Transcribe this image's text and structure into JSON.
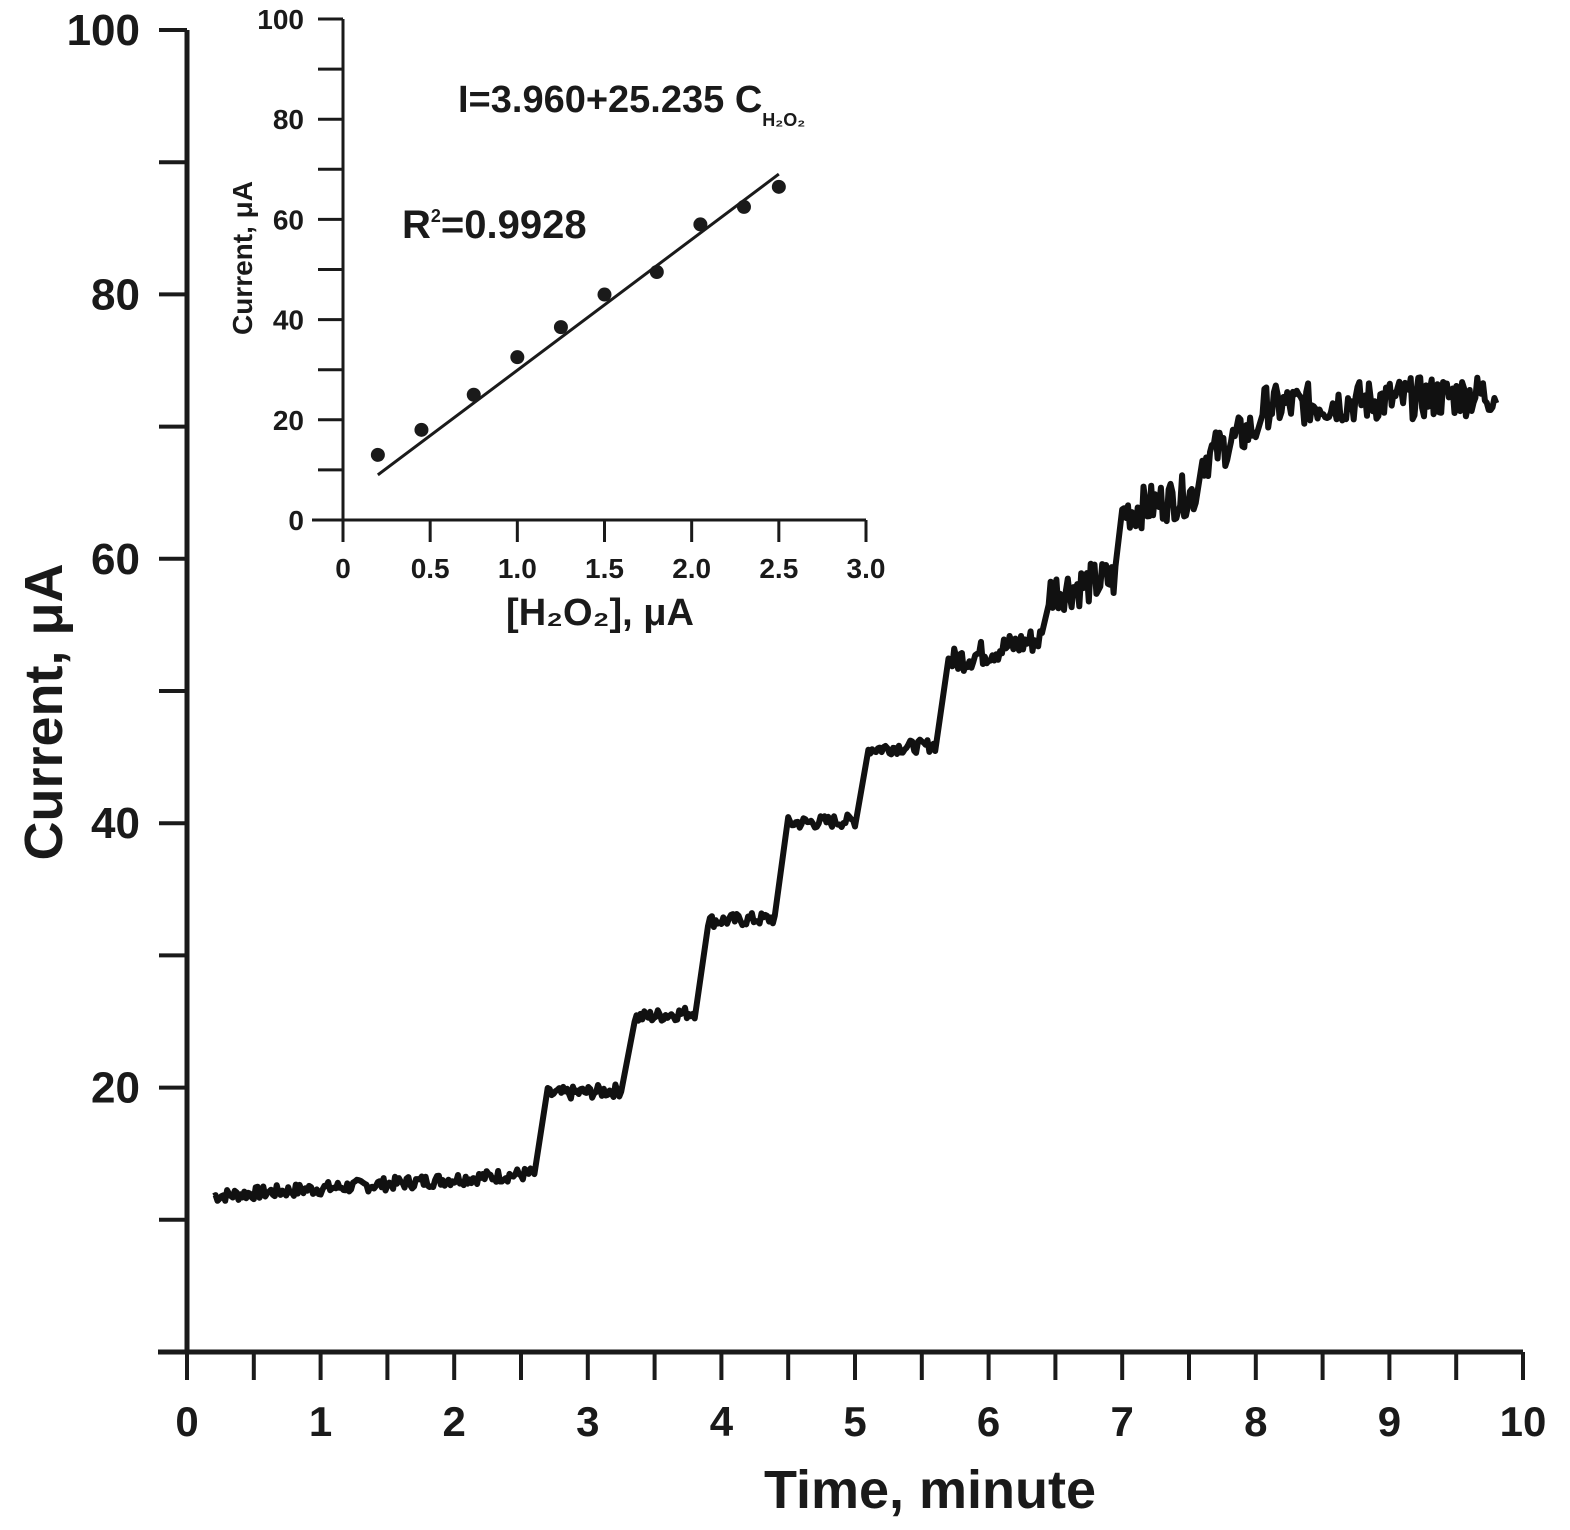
{
  "chart_data": [
    {
      "type": "line",
      "title": "",
      "xlabel": "Time, minute",
      "ylabel": "Current, μA",
      "xlim": [
        0,
        10
      ],
      "ylim": [
        0,
        100
      ],
      "x_ticks": [
        "0",
        "1",
        "2",
        "3",
        "4",
        "5",
        "6",
        "7",
        "8",
        "9",
        "10"
      ],
      "y_tick_labels": [
        "20",
        "40",
        "60",
        "80",
        "100"
      ],
      "y_tick_label_values": [
        20,
        40,
        60,
        80,
        100
      ],
      "steps": [
        {
          "x_start": 0.2,
          "x_end": 2.6,
          "y_start": 11.8,
          "y_end": 13.5
        },
        {
          "x_start": 2.7,
          "x_end": 3.25,
          "y_start": 19.5,
          "y_end": 19.8
        },
        {
          "x_start": 3.35,
          "x_end": 3.8,
          "y_start": 25.3,
          "y_end": 25.7
        },
        {
          "x_start": 3.9,
          "x_end": 4.4,
          "y_start": 32.6,
          "y_end": 32.8
        },
        {
          "x_start": 4.5,
          "x_end": 5.0,
          "y_start": 40.0,
          "y_end": 40.2
        },
        {
          "x_start": 5.1,
          "x_end": 5.6,
          "y_start": 45.6,
          "y_end": 45.9
        },
        {
          "x_start": 5.7,
          "x_end": 6.4,
          "y_start": 52.2,
          "y_end": 54.0
        },
        {
          "x_start": 6.45,
          "x_end": 6.95,
          "y_start": 57.5,
          "y_end": 58.5
        },
        {
          "x_start": 7.0,
          "x_end": 7.55,
          "y_start": 63.5,
          "y_end": 65.0
        },
        {
          "x_start": 7.6,
          "x_end": 8.0,
          "y_start": 67.5,
          "y_end": 70.0
        },
        {
          "x_start": 8.05,
          "x_end": 9.8,
          "y_start": 71.5,
          "y_end": 72.5
        }
      ]
    },
    {
      "type": "scatter",
      "title": "",
      "xlabel": "[H₂O₂], μA",
      "ylabel": "Current, μA",
      "xlim": [
        0,
        3.0
      ],
      "ylim": [
        0,
        100
      ],
      "x_ticks": [
        "0",
        "0.5",
        "1.0",
        "1.5",
        "2.0",
        "2.5",
        "3.0"
      ],
      "x_tick_values": [
        0,
        0.5,
        1.0,
        1.5,
        2.0,
        2.5,
        3.0
      ],
      "y_ticks": [
        "0",
        "20",
        "40",
        "60",
        "80",
        "100"
      ],
      "x": [
        0.2,
        0.45,
        0.75,
        1.0,
        1.25,
        1.5,
        1.8,
        2.05,
        2.3,
        2.5
      ],
      "y": [
        13,
        18,
        25,
        32.5,
        38.5,
        45,
        49.5,
        59,
        62.5,
        66.5
      ],
      "fit": {
        "intercept": 3.96,
        "slope": 25.235,
        "x_range": [
          0.2,
          2.5
        ]
      },
      "annotations": {
        "equation": "I=3.960+25.235 C",
        "equation_subscript": "H₂O₂",
        "r2_prefix": "R",
        "r2_sup": "2",
        "r2_value": "=0.9928"
      }
    }
  ]
}
